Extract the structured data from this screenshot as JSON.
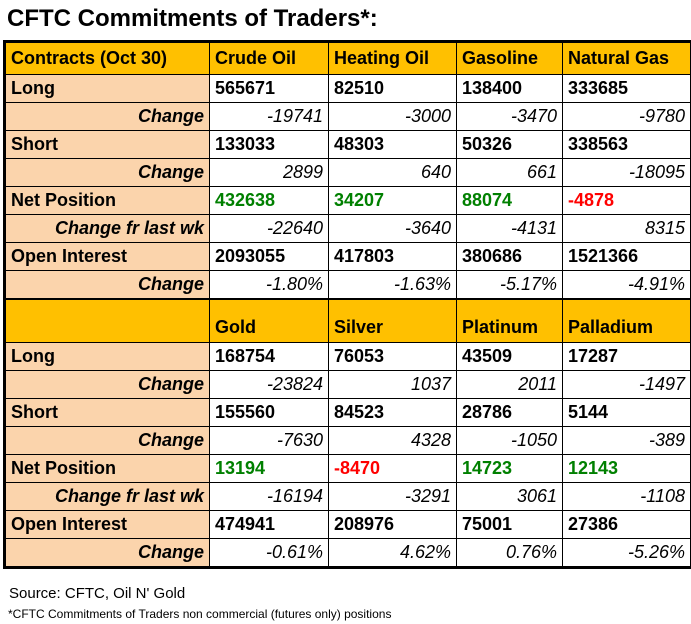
{
  "title": "CFTC Commitments of Traders*:",
  "colors": {
    "header_bg": "#FFC000",
    "label_bg": "#FBD4AC",
    "positive": "#008000",
    "negative": "#FF0000"
  },
  "footer": {
    "source": "Source: CFTC, Oil N' Gold",
    "note": "*CFTC Commitments of Traders non commercial (futures only) positions"
  },
  "chart_data": {
    "type": "table",
    "title": "CFTC Commitments of Traders*:",
    "sections": [
      {
        "columns": [
          "Contracts (Oct 30)",
          "Crude Oil",
          "Heating Oil",
          "Gasoline",
          "Natural Gas"
        ],
        "rows": [
          {
            "label": "Long",
            "style": "main",
            "values": [
              "565671",
              "82510",
              "138400",
              "333685"
            ]
          },
          {
            "label": "Change",
            "style": "change",
            "values": [
              "-19741",
              "-3000",
              "-3470",
              "-9780"
            ]
          },
          {
            "label": "Short",
            "style": "main",
            "values": [
              "133033",
              "48303",
              "50326",
              "338563"
            ]
          },
          {
            "label": "Change",
            "style": "change",
            "values": [
              "2899",
              "640",
              "661",
              "-18095"
            ]
          },
          {
            "label": "Net Position",
            "style": "net",
            "values": [
              "432638",
              "34207",
              "88074",
              "-4878"
            ]
          },
          {
            "label": "Change fr last wk",
            "style": "change",
            "values": [
              "-22640",
              "-3640",
              "-4131",
              "8315"
            ]
          },
          {
            "label": "Open Interest",
            "style": "main",
            "values": [
              "2093055",
              "417803",
              "380686",
              "1521366"
            ]
          },
          {
            "label": "Change",
            "style": "change",
            "values": [
              "-1.80%",
              "-1.63%",
              "-5.17%",
              "-4.91%"
            ]
          }
        ]
      },
      {
        "columns": [
          "",
          "Gold",
          "Silver",
          "Platinum",
          "Palladium"
        ],
        "rows": [
          {
            "label": "Long",
            "style": "main",
            "values": [
              "168754",
              "76053",
              "43509",
              "17287"
            ]
          },
          {
            "label": "Change",
            "style": "change",
            "values": [
              "-23824",
              "1037",
              "2011",
              "-1497"
            ]
          },
          {
            "label": "Short",
            "style": "main",
            "values": [
              "155560",
              "84523",
              "28786",
              "5144"
            ]
          },
          {
            "label": "Change",
            "style": "change",
            "values": [
              "-7630",
              "4328",
              "-1050",
              "-389"
            ]
          },
          {
            "label": "Net Position",
            "style": "net",
            "values": [
              "13194",
              "-8470",
              "14723",
              "12143"
            ]
          },
          {
            "label": "Change fr last wk",
            "style": "change",
            "values": [
              "-16194",
              "-3291",
              "3061",
              "-1108"
            ]
          },
          {
            "label": "Open Interest",
            "style": "main",
            "values": [
              "474941",
              "208976",
              "75001",
              "27386"
            ]
          },
          {
            "label": "Change",
            "style": "change",
            "values": [
              "-0.61%",
              "4.62%",
              "0.76%",
              "-5.26%"
            ]
          }
        ]
      }
    ]
  }
}
